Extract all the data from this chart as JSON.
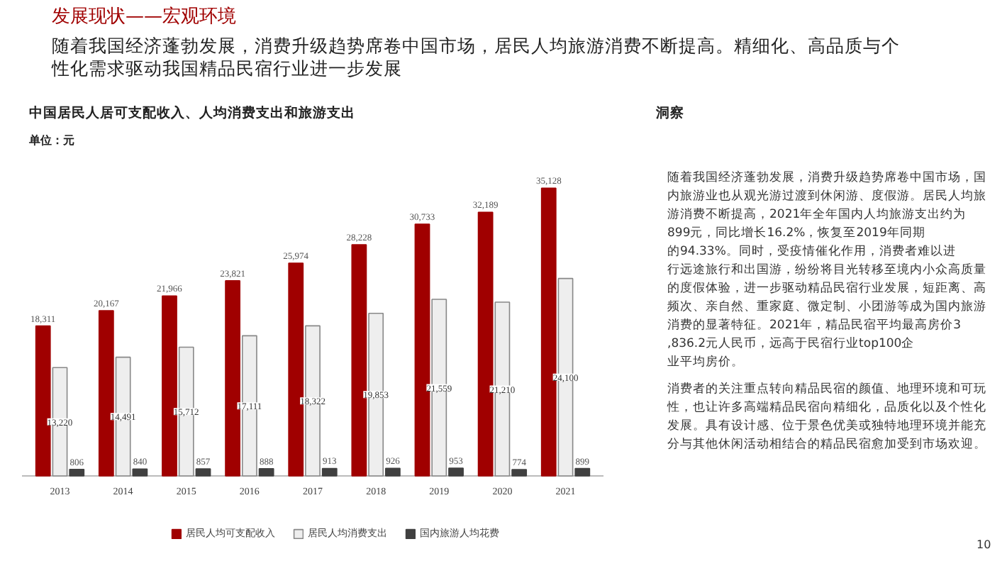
{
  "chart_data": {
    "type": "bar",
    "title": "中国居民人居可支配收入、人均消费支出和旅游支出",
    "subtitle": "单位：元",
    "categories": [
      "2013",
      "2014",
      "2015",
      "2016",
      "2017",
      "2018",
      "2019",
      "2020",
      "2021"
    ],
    "series": [
      {
        "name": "居民人均可支配收入",
        "color": "#a00000",
        "values": [
          18311,
          20167,
          21966,
          23821,
          25974,
          28228,
          30733,
          32189,
          35128
        ],
        "value_labels": [
          "18,311",
          "20,167",
          "21,966",
          "23,821",
          "25,974",
          "28,228",
          "30,733",
          "32,189",
          "35,128"
        ]
      },
      {
        "name": "居民人均消费支出",
        "color": "#eeeeee",
        "values": [
          13220,
          14491,
          15712,
          17111,
          18322,
          19853,
          21559,
          21210,
          24100
        ],
        "value_labels": [
          "13,220",
          "14,491",
          "15,712",
          "17,111",
          "18,322",
          "19,853",
          "21,559",
          "21,210",
          "24,100"
        ]
      },
      {
        "name": "国内旅游人均花费",
        "color": "#404040",
        "values": [
          806,
          840,
          857,
          888,
          913,
          926,
          953,
          774,
          899
        ],
        "value_labels": [
          "806",
          "840",
          "857",
          "888",
          "913",
          "926",
          "953",
          "774",
          "899"
        ]
      }
    ],
    "legend": "bottom",
    "annotations": [
      "发展现状——宏观环境",
      "随着我国经济蓬勃发展，消费升级趋势席卷中国市场，居民人均旅游消费不断提高。精细化、高品质与个性化需求驱动我国精品民宿行业进一步发展",
      "洞察",
      "随着我国经济蓬勃发展，消费升级趋势席卷中国市场，国内旅游业也从观光游过渡到休闲游、度假游。居民人均旅游消费不断提高，2021年全年国内人均旅游支出约为899元，同比增长16.2%，恢复至2019年同期的94.33%。同时，受疫情催化作用，消费者难以进行远途旅行和出国游，纷纷将目光转移至境内小众高质量的度假体验，进一步驱动精品民宿行业发展，短距离、高频次、亲自然、重家庭、微定制、小团游等成为国内旅游消费的显著特征。2021年，精品民宿平均最高房价3,836.2元人民币，远高于民宿行业top100企业平均房价。",
      "消费者的关注重点转向精品民宿的颜值、地理环境和可玩性，也让许多高端精品民宿向精细化，品质化以及个性化发展。具有设计感、位于景色优美或独特地理环境并能充分与其他休闲活动相结合的精品民宿愈加受到市场欢迎。",
      "10"
    ]
  }
}
